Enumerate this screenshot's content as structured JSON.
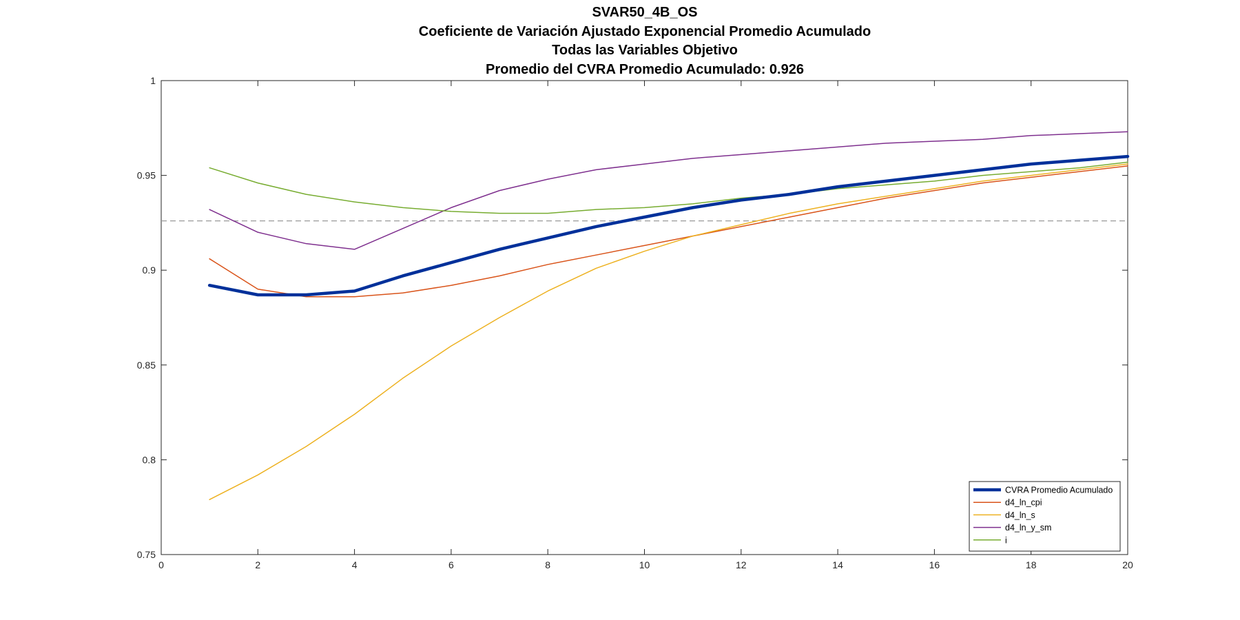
{
  "chart_data": {
    "type": "line",
    "title_lines": [
      "SVAR50_4B_OS",
      "Coeficiente de Variación Ajustado Exponencial Promedio Acumulado",
      "Todas las Variables Objetivo",
      "Promedio del CVRA Promedio Acumulado:  0.926"
    ],
    "xlim": [
      0,
      20
    ],
    "ylim": [
      0.75,
      1
    ],
    "xticks": [
      0,
      2,
      4,
      6,
      8,
      10,
      12,
      14,
      16,
      18,
      20
    ],
    "xtick_labels": [
      "0",
      "2",
      "4",
      "6",
      "8",
      "10",
      "12",
      "14",
      "16",
      "18",
      "20"
    ],
    "yticks": [
      0.75,
      0.8,
      0.85,
      0.9,
      0.95,
      1
    ],
    "ytick_labels": [
      "0.75",
      "0.8",
      "0.85",
      "0.9",
      "0.95",
      "1"
    ],
    "grid": false,
    "legend_position": "bottom-right",
    "reference_line": {
      "y": 0.926,
      "color": "#999999",
      "style": "dashed"
    },
    "x": [
      1,
      2,
      3,
      4,
      5,
      6,
      7,
      8,
      9,
      10,
      11,
      12,
      13,
      14,
      15,
      16,
      17,
      18,
      19,
      20
    ],
    "series": [
      {
        "name": "CVRA Promedio Acumulado",
        "color": "#00309A",
        "width": 4.5,
        "values": [
          0.892,
          0.887,
          0.887,
          0.889,
          0.897,
          0.904,
          0.911,
          0.917,
          0.923,
          0.928,
          0.933,
          0.937,
          0.94,
          0.944,
          0.947,
          0.95,
          0.953,
          0.956,
          0.958,
          0.96
        ]
      },
      {
        "name": "d4_ln_cpi",
        "color": "#D95319",
        "width": 1.5,
        "values": [
          0.906,
          0.89,
          0.886,
          0.886,
          0.888,
          0.892,
          0.897,
          0.903,
          0.908,
          0.913,
          0.918,
          0.923,
          0.928,
          0.933,
          0.938,
          0.942,
          0.946,
          0.949,
          0.952,
          0.955
        ]
      },
      {
        "name": "d4_ln_s",
        "color": "#EDB120",
        "width": 1.5,
        "values": [
          0.779,
          0.792,
          0.807,
          0.824,
          0.843,
          0.86,
          0.875,
          0.889,
          0.901,
          0.91,
          0.918,
          0.924,
          0.93,
          0.935,
          0.939,
          0.943,
          0.947,
          0.95,
          0.953,
          0.956
        ]
      },
      {
        "name": "d4_ln_y_sm",
        "color": "#7E2F8E",
        "width": 1.5,
        "values": [
          0.932,
          0.92,
          0.914,
          0.911,
          0.922,
          0.933,
          0.942,
          0.948,
          0.953,
          0.956,
          0.959,
          0.961,
          0.963,
          0.965,
          0.967,
          0.968,
          0.969,
          0.971,
          0.972,
          0.973
        ]
      },
      {
        "name": "i",
        "color": "#77AC30",
        "width": 1.5,
        "values": [
          0.954,
          0.946,
          0.94,
          0.936,
          0.933,
          0.931,
          0.93,
          0.93,
          0.932,
          0.933,
          0.935,
          0.938,
          0.94,
          0.943,
          0.945,
          0.947,
          0.95,
          0.952,
          0.954,
          0.957
        ]
      }
    ]
  }
}
